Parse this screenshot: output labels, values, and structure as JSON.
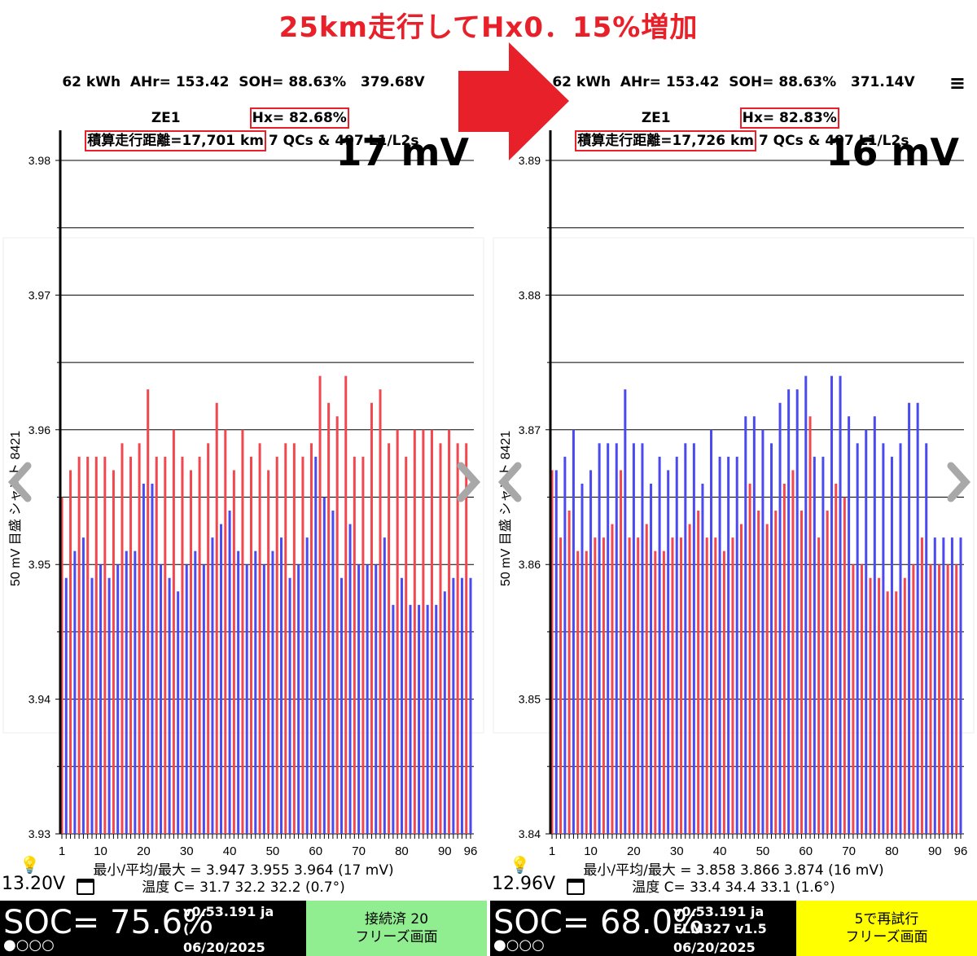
{
  "headline": "25km走行してHx0．15%増加",
  "colors": {
    "accent": "#e8202a",
    "bar_red": "#f2474f",
    "bar_blue": "#4a4af0",
    "status_green": "#90ee90",
    "status_yellow": "#ffff00"
  },
  "icons": [
    "right-arrow-icon",
    "menu-icon",
    "lightbulb-icon",
    "calendar-icon",
    "chevron-left-icon",
    "chevron-right-icon"
  ],
  "panels": [
    {
      "line1": "62 kWh  AHr= 153.42  SOH= 88.63%   379.68V",
      "model": "ZE1",
      "hx": "Hx= 82.68%",
      "odometer": "積算走行距離=17,701 km",
      "charges": "7 QCs & 497 L1/L2s",
      "spread": "17 mV",
      "y_axis_label": "50 mV 目盛  シャント 8421",
      "stats": "最小/平均/最大 = 3.947 3.955 3.964  (17 mV)",
      "temps": "温度 C= 31.7  32.2  32.2  (0.7°)",
      "aux_voltage": "13.20V",
      "soc": "SOC= 75.6%",
      "dots": "●○○○",
      "version": "v0.53.191 ja",
      "sub": "(",
      "date": "06/20/2025",
      "status_line1": "接続済 20",
      "status_line2": "フリーズ画面",
      "status_color": "#90ee90"
    },
    {
      "line1": "62 kWh  AHr= 153.42  SOH= 88.63%   371.14V",
      "model": "ZE1",
      "hx": "Hx= 82.83%",
      "odometer": "積算走行距離=17,726 km",
      "charges": "7 QCs & 497 L1/L2s",
      "spread": "16 mV",
      "y_axis_label": "50 mV 目盛  シャント 8421",
      "stats": "最小/平均/最大 = 3.858 3.866 3.874  (16 mV)",
      "temps": "温度 C= 33.4  34.4  33.1  (1.6°)",
      "aux_voltage": "12.96V",
      "soc": "SOC= 68.0%",
      "dots": "●○○○",
      "version": "v0.53.191 ja",
      "sub": "ELM327 v1.5",
      "date": "06/20/2025",
      "status_line1": "5で再試行",
      "status_line2": "フリーズ画面",
      "status_color": "#ffff00"
    }
  ],
  "chart_data": [
    {
      "type": "bar",
      "y_ticks": [
        "3.98",
        "3.97",
        "3.96",
        "3.95",
        "3.94",
        "3.93"
      ],
      "ylim": [
        3.93,
        3.98
      ],
      "x_ticks": [
        "1",
        "10",
        "20",
        "30",
        "40",
        "50",
        "60",
        "70",
        "80",
        "90",
        "96"
      ],
      "xlim": [
        1,
        96
      ],
      "series": [
        {
          "values": [
            3.955,
            3.949,
            3.957,
            3.951,
            3.958,
            3.952,
            3.958,
            3.949,
            3.958,
            3.95,
            3.958,
            3.949,
            3.957,
            3.95,
            3.959,
            3.951,
            3.958,
            3.951,
            3.959,
            3.956,
            3.963,
            3.956,
            3.958,
            3.95,
            3.958,
            3.949,
            3.96,
            3.948,
            3.958,
            3.95,
            3.957,
            3.951,
            3.958,
            3.95,
            3.959,
            3.952,
            3.962,
            3.953,
            3.96,
            3.954,
            3.957,
            3.951,
            3.96,
            3.95,
            3.958,
            3.951,
            3.959,
            3.95,
            3.957,
            3.951,
            3.958,
            3.952,
            3.959,
            3.949,
            3.959,
            3.95,
            3.958,
            3.952,
            3.959,
            3.958,
            3.964,
            3.955,
            3.962,
            3.954,
            3.961,
            3.949,
            3.964,
            3.953,
            3.958,
            3.95,
            3.958,
            3.95,
            3.962,
            3.95,
            3.963,
            3.952,
            3.959,
            3.947,
            3.96,
            3.949,
            3.958,
            3.947,
            3.96,
            3.947,
            3.96,
            3.947,
            3.96,
            3.947,
            3.959,
            3.948,
            3.96,
            3.949,
            3.959,
            3.949,
            3.959,
            3.949
          ]
        }
      ]
    },
    {
      "type": "bar",
      "y_ticks": [
        "3.89",
        "3.88",
        "3.87",
        "3.86",
        "3.85",
        "3.84"
      ],
      "ylim": [
        3.84,
        3.89
      ],
      "x_ticks": [
        "1",
        "10",
        "20",
        "30",
        "40",
        "50",
        "60",
        "70",
        "80",
        "90",
        "96"
      ],
      "xlim": [
        1,
        96
      ],
      "series": [
        {
          "values": [
            3.867,
            3.867,
            3.862,
            3.868,
            3.864,
            3.87,
            3.861,
            3.866,
            3.861,
            3.867,
            3.862,
            3.869,
            3.862,
            3.869,
            3.863,
            3.869,
            3.867,
            3.873,
            3.862,
            3.869,
            3.862,
            3.869,
            3.863,
            3.866,
            3.861,
            3.868,
            3.861,
            3.867,
            3.862,
            3.868,
            3.862,
            3.869,
            3.863,
            3.869,
            3.864,
            3.866,
            3.862,
            3.87,
            3.862,
            3.868,
            3.861,
            3.868,
            3.862,
            3.868,
            3.863,
            3.871,
            3.866,
            3.871,
            3.864,
            3.87,
            3.863,
            3.869,
            3.864,
            3.872,
            3.866,
            3.873,
            3.867,
            3.873,
            3.864,
            3.874,
            3.871,
            3.868,
            3.862,
            3.868,
            3.864,
            3.874,
            3.866,
            3.874,
            3.865,
            3.871,
            3.86,
            3.869,
            3.86,
            3.87,
            3.859,
            3.871,
            3.859,
            3.869,
            3.858,
            3.868,
            3.858,
            3.869,
            3.859,
            3.872,
            3.86,
            3.872,
            3.862,
            3.869,
            3.86,
            3.862,
            3.86,
            3.862,
            3.86,
            3.862,
            3.86,
            3.862
          ]
        }
      ]
    }
  ]
}
